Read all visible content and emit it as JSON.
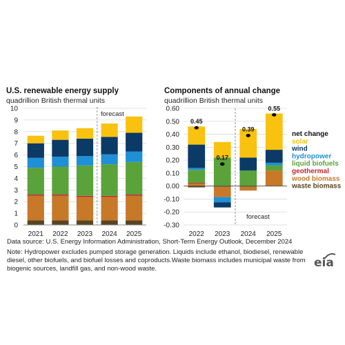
{
  "colors": {
    "solar": "#f9c20f",
    "wind": "#0b3a66",
    "hydropower": "#1f8fd6",
    "liquid_biofuels": "#5aa23a",
    "geothermal": "#c0282e",
    "wood_biomass": "#c77928",
    "waste_biomass": "#5a4421",
    "net_change_dot": "#000000"
  },
  "chart_data": [
    {
      "type": "bar",
      "stacked": true,
      "title": "U.S. renewable energy supply",
      "subtitle": "quadrillion British thermal units",
      "categories": [
        "2021",
        "2022",
        "2023",
        "2024",
        "2025"
      ],
      "ylim": [
        0,
        10
      ],
      "yticks": [
        "0",
        "1",
        "2",
        "3",
        "4",
        "5",
        "6",
        "7",
        "8",
        "9",
        "10"
      ],
      "forecast_label": "forecast",
      "series": [
        {
          "name": "waste biomass",
          "key": "waste_biomass",
          "values": [
            0.4,
            0.4,
            0.4,
            0.4,
            0.4
          ]
        },
        {
          "name": "wood biomass",
          "key": "wood_biomass",
          "values": [
            2.1,
            2.1,
            2.0,
            2.0,
            2.1
          ]
        },
        {
          "name": "geothermal",
          "key": "geothermal",
          "values": [
            0.1,
            0.1,
            0.1,
            0.1,
            0.1
          ]
        },
        {
          "name": "liquid biofuels",
          "key": "liquid_biofuels",
          "values": [
            2.3,
            2.4,
            2.6,
            2.7,
            2.8
          ]
        },
        {
          "name": "hydropower",
          "key": "hydropower",
          "values": [
            0.85,
            0.85,
            0.8,
            0.85,
            0.9
          ]
        },
        {
          "name": "wind",
          "key": "wind",
          "values": [
            1.25,
            1.45,
            1.5,
            1.5,
            1.6
          ]
        },
        {
          "name": "solar",
          "key": "solar",
          "values": [
            0.65,
            0.8,
            0.9,
            1.15,
            1.4
          ]
        }
      ]
    },
    {
      "type": "bar",
      "stacked": true,
      "title": "Components of annual change",
      "subtitle": "quadrillion British thermal units",
      "categories": [
        "2022",
        "2023",
        "2024",
        "2025"
      ],
      "ylim": [
        -0.3,
        0.6
      ],
      "yticks": [
        "-0.30",
        "-0.20",
        "-0.10",
        "0.00",
        "0.10",
        "0.20",
        "0.30",
        "0.40",
        "0.50",
        "0.60"
      ],
      "forecast_label": "forecast",
      "net_change": [
        0.45,
        0.17,
        0.39,
        0.55
      ],
      "net_change_labels": [
        "0.45",
        "0.17",
        "0.39",
        "0.55"
      ],
      "series": [
        {
          "name": "waste biomass",
          "key": "waste_biomass",
          "values": [
            -0.01,
            -0.005,
            -0.005,
            0.0
          ]
        },
        {
          "name": "wood biomass",
          "key": "wood_biomass",
          "values": [
            0.02,
            -0.08,
            -0.03,
            0.12
          ]
        },
        {
          "name": "geothermal",
          "key": "geothermal",
          "values": [
            0.005,
            0.0,
            0.0,
            0.0
          ]
        },
        {
          "name": "liquid biofuels",
          "key": "liquid_biofuels",
          "values": [
            0.1,
            0.22,
            0.12,
            0.04
          ]
        },
        {
          "name": "hydropower",
          "key": "hydropower",
          "values": [
            0.015,
            -0.04,
            0.0,
            0.02
          ]
        },
        {
          "name": "wind",
          "key": "wind",
          "values": [
            0.18,
            -0.04,
            0.1,
            0.1
          ]
        },
        {
          "name": "solar",
          "key": "solar",
          "values": [
            0.14,
            0.12,
            0.22,
            0.28
          ]
        }
      ],
      "legend": [
        {
          "name": "net change",
          "key": "net_change_dot"
        },
        {
          "name": "solar",
          "key": "solar"
        },
        {
          "name": "wind",
          "key": "wind"
        },
        {
          "name": "hydropower",
          "key": "hydropower"
        },
        {
          "name": "liquid biofuels",
          "key": "liquid_biofuels"
        },
        {
          "name": "geothermal",
          "key": "geothermal"
        },
        {
          "name": "wood biomass",
          "key": "wood_biomass"
        },
        {
          "name": "waste biomass",
          "key": "waste_biomass"
        }
      ]
    }
  ],
  "source_text": "Data source: U.S. Energy Information Administration, Short-Term Energy Outlook, December 2024",
  "note_text": "Note: Hydropower excludes pumped storage generation. Liquids include ethanol, biodiesel, renewable diesel, other biofuels, and biofuel losses and coproducts.Waste biomass includes municipal waste from biogenic sources, landfill gas, and non-wood waste.",
  "logo_text": "eia"
}
